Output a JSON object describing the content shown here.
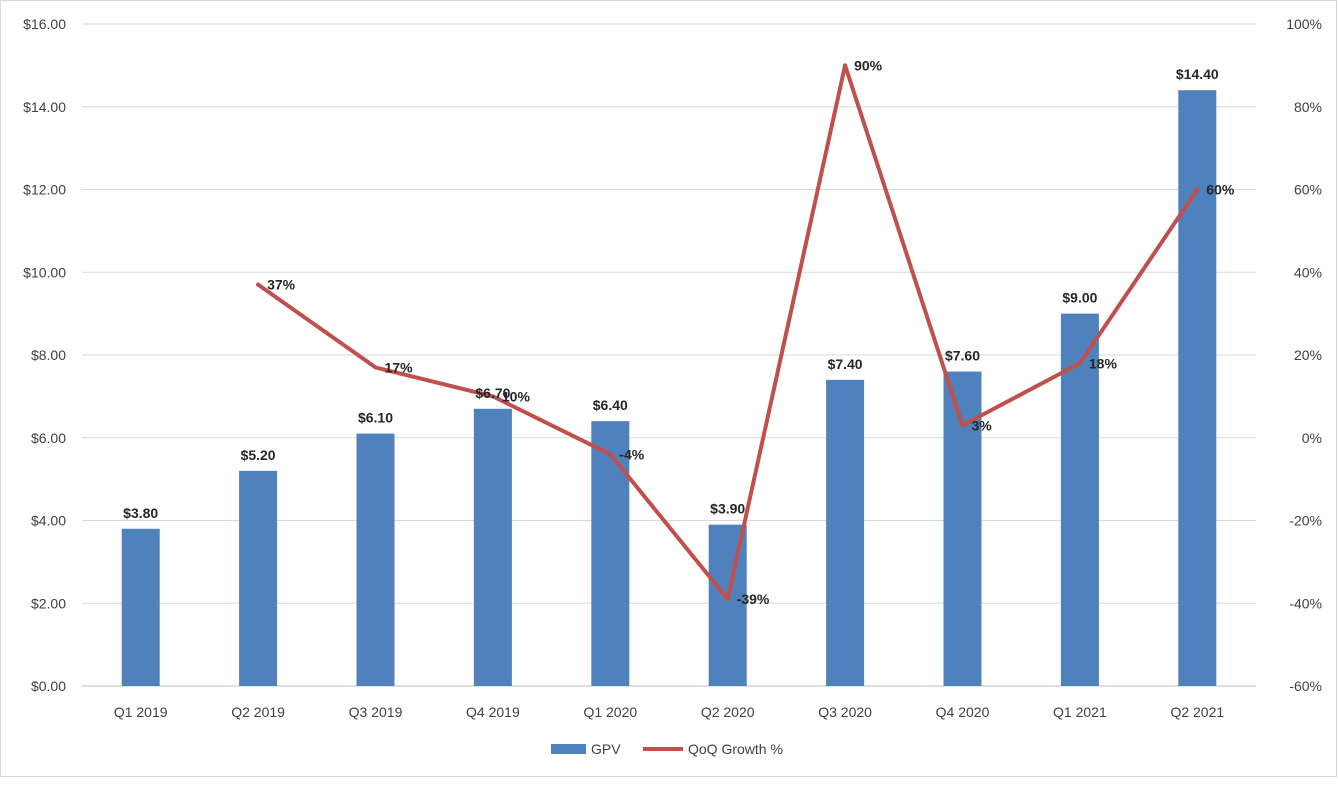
{
  "chart_data": {
    "type": "bar",
    "categories": [
      "Q1 2019",
      "Q2 2019",
      "Q3 2019",
      "Q4 2019",
      "Q1 2020",
      "Q2 2020",
      "Q3 2020",
      "Q4 2020",
      "Q1 2021",
      "Q2 2021"
    ],
    "series": [
      {
        "name": "GPV",
        "type": "bar",
        "axis": "left",
        "color": "#4F81BD",
        "values": [
          3.8,
          5.2,
          6.1,
          6.7,
          6.4,
          3.9,
          7.4,
          7.6,
          9.0,
          14.4
        ],
        "labels": [
          "$3.80",
          "$5.20",
          "$6.10",
          "$6.70",
          "$6.40",
          "$3.90",
          "$7.40",
          "$7.60",
          "$9.00",
          "$14.40"
        ]
      },
      {
        "name": "QoQ Growth %",
        "type": "line",
        "axis": "right",
        "color": "#C0504D",
        "values": [
          null,
          37,
          17,
          10,
          -4,
          -39,
          90,
          3,
          18,
          60
        ],
        "labels": [
          "",
          "37%",
          "17%",
          "10%",
          "-4%",
          "-39%",
          "90%",
          "3%",
          "18%",
          "60%"
        ]
      }
    ],
    "y_left": {
      "range": [
        0,
        16
      ],
      "ticks": [
        0,
        2,
        4,
        6,
        8,
        10,
        12,
        14,
        16
      ],
      "tick_labels": [
        "$0.00",
        "$2.00",
        "$4.00",
        "$6.00",
        "$8.00",
        "$10.00",
        "$12.00",
        "$14.00",
        "$16.00"
      ]
    },
    "y_right": {
      "range": [
        -60,
        100
      ],
      "ticks": [
        -60,
        -40,
        -20,
        0,
        20,
        40,
        60,
        80,
        100
      ],
      "tick_labels": [
        "-60%",
        "-40%",
        "-20%",
        "0%",
        "20%",
        "40%",
        "60%",
        "80%",
        "100%"
      ]
    },
    "title": "",
    "xlabel": "",
    "ylabel": "",
    "grid": true,
    "legend": {
      "position": "bottom",
      "entries": [
        "GPV",
        "QoQ Growth %"
      ]
    }
  }
}
